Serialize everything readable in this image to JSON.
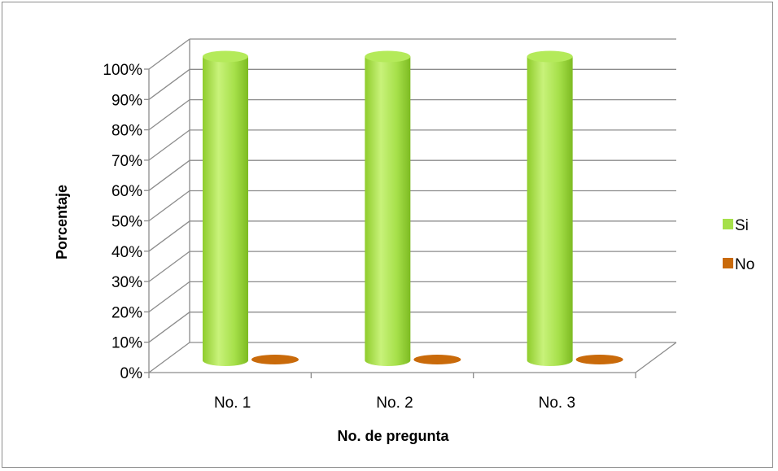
{
  "chart_data": {
    "type": "bar",
    "style": "3d-cylinder",
    "categories": [
      "No. 1",
      "No. 2",
      "No. 3"
    ],
    "series": [
      {
        "name": "Si",
        "values": [
          100,
          100,
          100
        ],
        "color": "#a6e04a"
      },
      {
        "name": "No",
        "values": [
          0,
          0,
          0
        ],
        "color": "#c96a0a"
      }
    ],
    "xlabel": "No. de pregunta",
    "ylabel": "Porcentaje",
    "ylim": [
      0,
      100
    ],
    "yticks": [
      "0%",
      "10%",
      "20%",
      "30%",
      "40%",
      "50%",
      "60%",
      "70%",
      "80%",
      "90%",
      "100%"
    ],
    "grid": true,
    "legend_position": "right"
  },
  "colors": {
    "gridline": "#8c8c8c",
    "frame": "#8c8c8c"
  }
}
